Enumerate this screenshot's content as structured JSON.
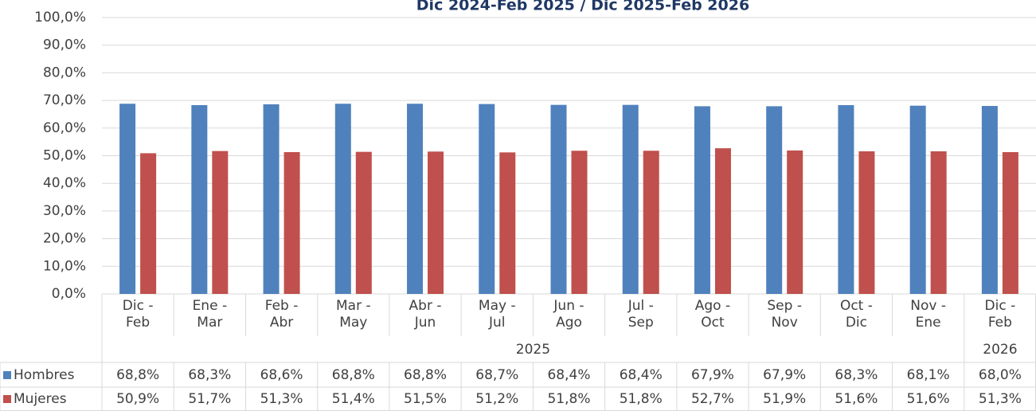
{
  "chart_data": {
    "type": "bar",
    "title": "Dic 2024-Feb 2025 / Dic 2025-Feb 2026",
    "category_groups": [
      {
        "label": "2025",
        "categories": [
          "Dic - Feb",
          "Ene - Mar",
          "Feb - Abr",
          "Mar - May",
          "Abr - Jun",
          "May - Jul",
          "Jun - Ago",
          "Jul - Sep",
          "Ago - Oct",
          "Sep - Nov",
          "Oct - Dic",
          "Nov - Ene"
        ]
      },
      {
        "label": "2026",
        "categories": [
          "Dic - Feb"
        ]
      }
    ],
    "series": [
      {
        "name": "Hombres",
        "color": "#4f81bd",
        "values": [
          68.8,
          68.3,
          68.6,
          68.8,
          68.8,
          68.7,
          68.4,
          68.4,
          67.9,
          67.9,
          68.3,
          68.1,
          68.0
        ],
        "value_labels": [
          "68,8%",
          "68,3%",
          "68,6%",
          "68,8%",
          "68,8%",
          "68,7%",
          "68,4%",
          "68,4%",
          "67,9%",
          "67,9%",
          "68,3%",
          "68,1%",
          "68,0%"
        ]
      },
      {
        "name": "Mujeres",
        "color": "#c0504d",
        "values": [
          50.9,
          51.7,
          51.3,
          51.4,
          51.5,
          51.2,
          51.8,
          51.8,
          52.7,
          51.9,
          51.6,
          51.6,
          51.3
        ],
        "value_labels": [
          "50,9%",
          "51,7%",
          "51,3%",
          "51,4%",
          "51,5%",
          "51,2%",
          "51,8%",
          "51,8%",
          "52,7%",
          "51,9%",
          "51,6%",
          "51,6%",
          "51,3%"
        ]
      }
    ],
    "ylim": [
      0,
      100
    ],
    "yticks": [
      {
        "value": 0,
        "label": "0,0%"
      },
      {
        "value": 10,
        "label": "10,0%"
      },
      {
        "value": 20,
        "label": "20,0%"
      },
      {
        "value": 30,
        "label": "30,0%"
      },
      {
        "value": 40,
        "label": "40,0%"
      },
      {
        "value": 50,
        "label": "50,0%"
      },
      {
        "value": 60,
        "label": "60,0%"
      },
      {
        "value": 70,
        "label": "70,0%"
      },
      {
        "value": 80,
        "label": "80,0%"
      },
      {
        "value": 90,
        "label": "90,0%"
      },
      {
        "value": 100,
        "label": "100,0%"
      }
    ],
    "grid": true
  }
}
